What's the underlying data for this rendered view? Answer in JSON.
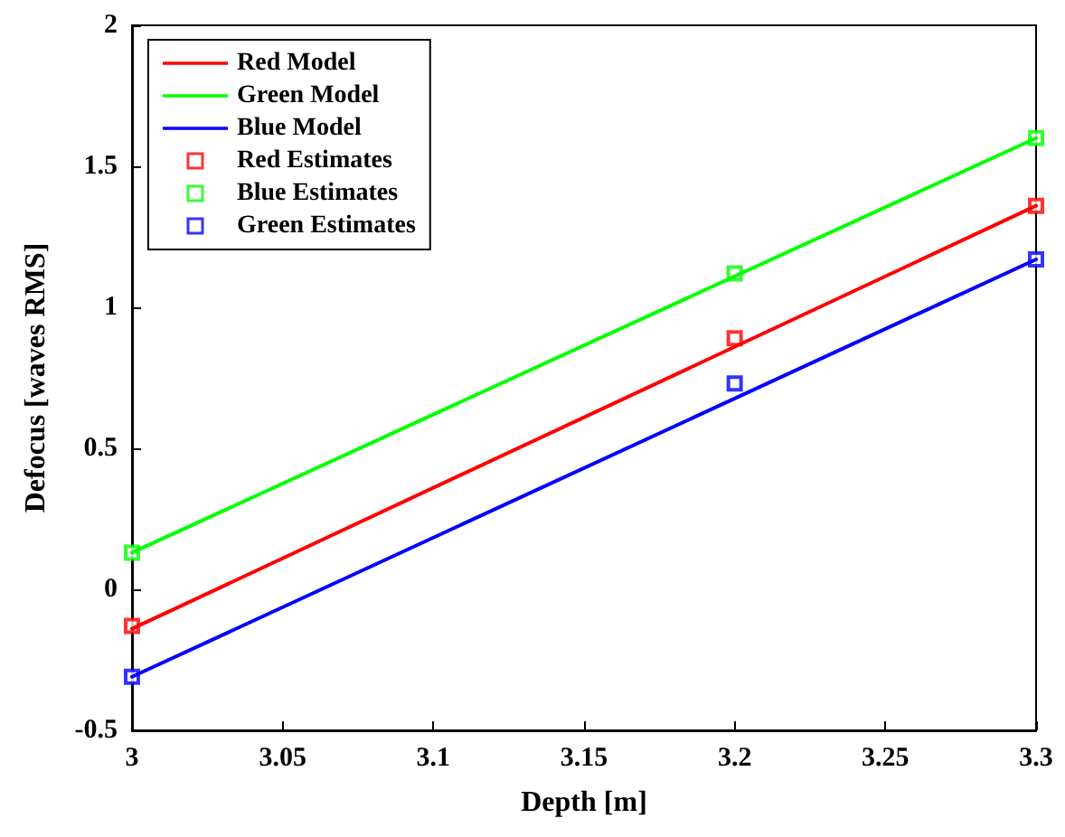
{
  "chart_data": {
    "type": "line",
    "xlabel": "Depth [m]",
    "ylabel": "Defocus [waves RMS]",
    "xlim": [
      3,
      3.3
    ],
    "xticks": [
      3,
      3.05,
      3.1,
      3.15,
      3.2,
      3.25,
      3.3
    ],
    "ylim": [
      -0.5,
      2
    ],
    "yticks": [
      -0.5,
      0,
      0.5,
      1,
      1.5,
      2
    ],
    "grid": false,
    "legend": "top left",
    "series": [
      {
        "name": "Red Model",
        "marker": "none",
        "line_style": "solid",
        "color": "#ff0000",
        "x": [
          3,
          3.3
        ],
        "values": [
          -0.14,
          1.36
        ]
      },
      {
        "name": "Green Model",
        "marker": "none",
        "line_style": "solid",
        "color": "#00ff00",
        "x": [
          3,
          3.3
        ],
        "values": [
          0.13,
          1.6
        ]
      },
      {
        "name": "Blue Model",
        "marker": "none",
        "line_style": "solid",
        "color": "#0000ff",
        "x": [
          3,
          3.3
        ],
        "values": [
          -0.31,
          1.17
        ]
      },
      {
        "name": "Red Estimates",
        "type": "scatter",
        "marker": "square",
        "color": "#ff0000",
        "x": [
          3,
          3.2,
          3.3
        ],
        "values": [
          -0.13,
          0.89,
          1.36
        ]
      },
      {
        "name": "Blue Estimates",
        "type": "scatter",
        "marker": "square",
        "color": "#00ff00",
        "x": [
          3,
          3.2,
          3.3
        ],
        "values": [
          0.13,
          1.12,
          1.6
        ]
      },
      {
        "name": "Green Estimates",
        "type": "scatter",
        "marker": "square",
        "color": "#0000ff",
        "x": [
          3,
          3.2,
          3.3
        ],
        "values": [
          -0.31,
          0.73,
          1.17
        ]
      }
    ]
  }
}
